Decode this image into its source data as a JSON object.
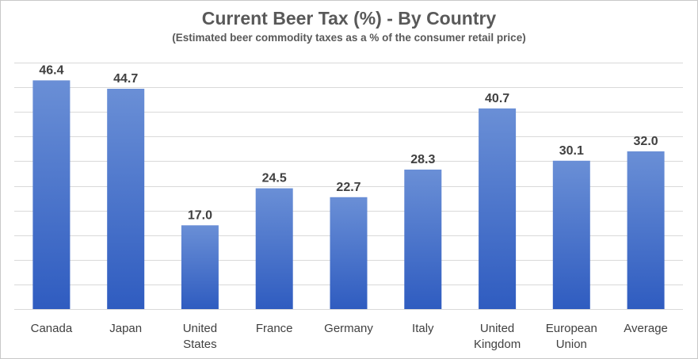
{
  "chart_data": {
    "type": "bar",
    "title": "Current Beer Tax (%) - By Country",
    "subtitle": "(Estimated beer commodity taxes as a % of the consumer retail price)",
    "xlabel": "",
    "ylabel": "",
    "categories": [
      [
        "Canada"
      ],
      [
        "Japan"
      ],
      [
        "United",
        "States"
      ],
      [
        "France"
      ],
      [
        "Germany"
      ],
      [
        "Italy"
      ],
      [
        "United",
        "Kingdom"
      ],
      [
        "European",
        "Union"
      ],
      [
        "Average"
      ]
    ],
    "values": [
      46.4,
      44.7,
      17.0,
      24.5,
      22.7,
      28.3,
      40.7,
      30.1,
      32.0
    ],
    "value_labels": [
      "46.4",
      "44.7",
      "17.0",
      "24.5",
      "22.7",
      "28.3",
      "40.7",
      "30.1",
      "32.0"
    ],
    "ylim": [
      0,
      50
    ],
    "grid": true,
    "axis_tick_labels_visible": false,
    "bar_gradient": [
      "#6a8fd6",
      "#2f5cc0"
    ],
    "colors": {
      "gridline": "#d9d9d9",
      "text": "#404040",
      "title": "#595959"
    }
  }
}
